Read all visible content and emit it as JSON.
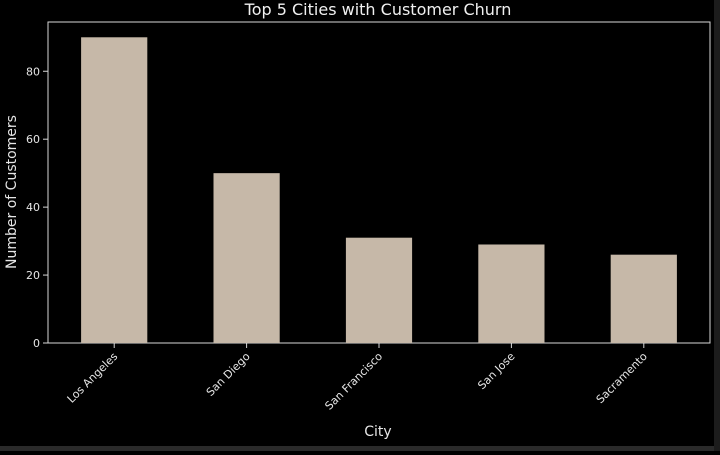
{
  "chart_data": {
    "type": "bar",
    "title": "Top 5 Cities with Customer Churn",
    "xlabel": "City",
    "ylabel": "Number of Customers",
    "categories": [
      "Los Angeles",
      "San Diego",
      "San Francisco",
      "San Jose",
      "Sacramento"
    ],
    "values": [
      90,
      50,
      31,
      29,
      26
    ],
    "yticks": [
      0,
      20,
      40,
      60,
      80
    ],
    "ylim": [
      0,
      94.5
    ],
    "grid": false,
    "colors": {
      "background": "#000000",
      "bar": "#c6b8a8",
      "axis": "#d8d8d8",
      "text": "#e6e6e6"
    }
  }
}
